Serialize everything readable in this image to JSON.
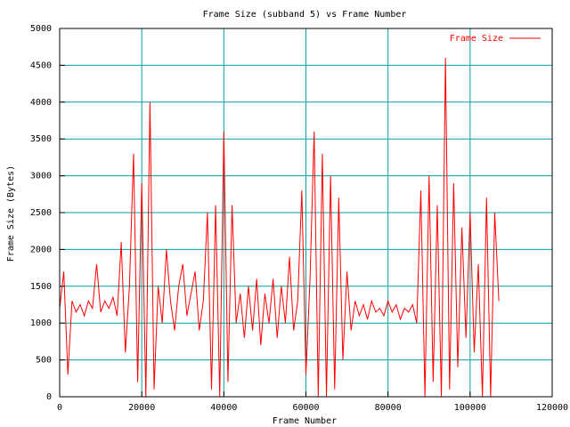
{
  "chart_data": {
    "type": "line",
    "title": "Frame Size (subband 5) vs Frame Number",
    "xlabel": "Frame Number",
    "ylabel": "Frame Size (Bytes)",
    "x": [
      0,
      1000,
      2000,
      3000,
      4000,
      5000,
      6000,
      7000,
      8000,
      9000,
      10000,
      11000,
      12000,
      13000,
      14000,
      15000,
      16000,
      17000,
      18000,
      19000,
      20000,
      21000,
      22000,
      23000,
      24000,
      25000,
      26000,
      27000,
      28000,
      29000,
      30000,
      31000,
      32000,
      33000,
      34000,
      35000,
      36000,
      37000,
      38000,
      39000,
      40000,
      41000,
      42000,
      43000,
      44000,
      45000,
      46000,
      47000,
      48000,
      49000,
      50000,
      51000,
      52000,
      53000,
      54000,
      55000,
      56000,
      57000,
      58000,
      59000,
      60000,
      61000,
      62000,
      63000,
      64000,
      65000,
      66000,
      67000,
      68000,
      69000,
      70000,
      71000,
      72000,
      73000,
      74000,
      75000,
      76000,
      77000,
      78000,
      79000,
      80000,
      81000,
      82000,
      83000,
      84000,
      85000,
      86000,
      87000,
      88000,
      89000,
      90000,
      91000,
      92000,
      93000,
      94000,
      95000,
      96000,
      97000,
      98000,
      99000,
      100000,
      101000,
      102000,
      103000,
      104000,
      105000,
      106000,
      107000
    ],
    "series": [
      {
        "name": "Frame Size",
        "color": "#ff0000",
        "values": [
          1200,
          1700,
          300,
          1300,
          1150,
          1250,
          1100,
          1300,
          1200,
          1800,
          1150,
          1300,
          1200,
          1350,
          1100,
          2100,
          600,
          1500,
          3300,
          200,
          2900,
          0,
          4000,
          100,
          1500,
          1000,
          2000,
          1300,
          900,
          1500,
          1800,
          1100,
          1400,
          1700,
          900,
          1300,
          2500,
          100,
          2600,
          0,
          3600,
          200,
          2600,
          1000,
          1400,
          800,
          1500,
          900,
          1600,
          700,
          1400,
          1000,
          1600,
          800,
          1500,
          1000,
          1900,
          900,
          1300,
          2800,
          300,
          1600,
          3600,
          0,
          3300,
          0,
          3000,
          100,
          2700,
          500,
          1700,
          900,
          1300,
          1100,
          1250,
          1050,
          1300,
          1150,
          1200,
          1100,
          1300,
          1150,
          1250,
          1050,
          1200,
          1150,
          1250,
          1000,
          2800,
          0,
          3000,
          200,
          2600,
          0,
          4600,
          100,
          2900,
          400,
          2300,
          800,
          2500,
          600,
          1800,
          0,
          2700,
          0,
          2500,
          1300
        ]
      }
    ],
    "xlim": [
      0,
      120000
    ],
    "xticks": [
      0,
      20000,
      40000,
      60000,
      80000,
      100000,
      120000
    ],
    "ylim": [
      0,
      5000
    ],
    "yticks": [
      0,
      500,
      1000,
      1500,
      2000,
      2500,
      3000,
      3500,
      4000,
      4500,
      5000
    ],
    "grid": true,
    "grid_color": "#00a0a0",
    "legend": "top-right"
  }
}
